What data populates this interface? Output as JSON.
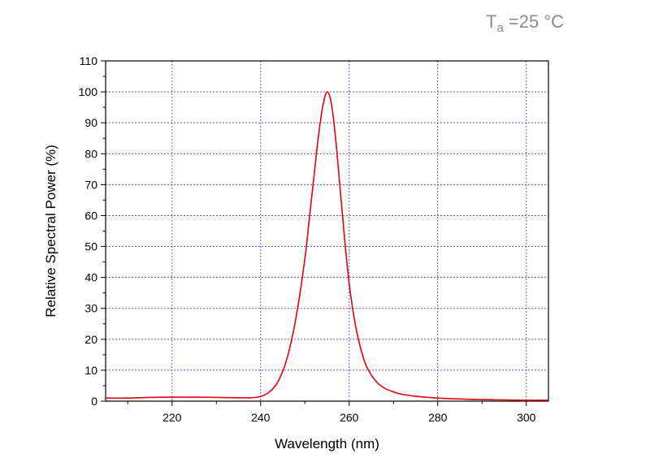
{
  "condition": {
    "symbol": "T",
    "subscript": "a",
    "text": " =25 °C"
  },
  "chart_data": {
    "type": "line",
    "title": "",
    "xlabel": "Wavelength (nm)",
    "ylabel": "Relative Spectral Power (%)",
    "xlim": [
      205,
      305
    ],
    "ylim": [
      0,
      110
    ],
    "x_ticks": [
      220,
      240,
      260,
      280,
      300
    ],
    "y_ticks": [
      0,
      10,
      20,
      30,
      40,
      50,
      60,
      70,
      80,
      90,
      100,
      110
    ],
    "grid": true,
    "line_color": "#e8000b",
    "grid_color": "#5555dd",
    "series": [
      {
        "x": [
          205,
          210,
          215,
          220,
          225,
          230,
          235,
          238,
          240,
          242,
          244,
          246,
          248,
          250,
          251,
          252,
          253,
          254,
          255,
          256,
          257,
          258,
          259,
          260,
          261,
          262,
          263,
          264,
          266,
          268,
          270,
          272,
          275,
          280,
          285,
          290,
          295,
          300,
          305
        ],
        "y": [
          1.0,
          1.0,
          1.2,
          1.3,
          1.3,
          1.2,
          1.1,
          1.1,
          1.5,
          3.0,
          6.5,
          14,
          27,
          46,
          59,
          72,
          85,
          95,
          100,
          96,
          84,
          68,
          52,
          38,
          28,
          20.5,
          15,
          11,
          6.5,
          4.2,
          3.0,
          2.2,
          1.6,
          1.0,
          0.7,
          0.5,
          0.4,
          0.3,
          0.3
        ]
      }
    ]
  }
}
